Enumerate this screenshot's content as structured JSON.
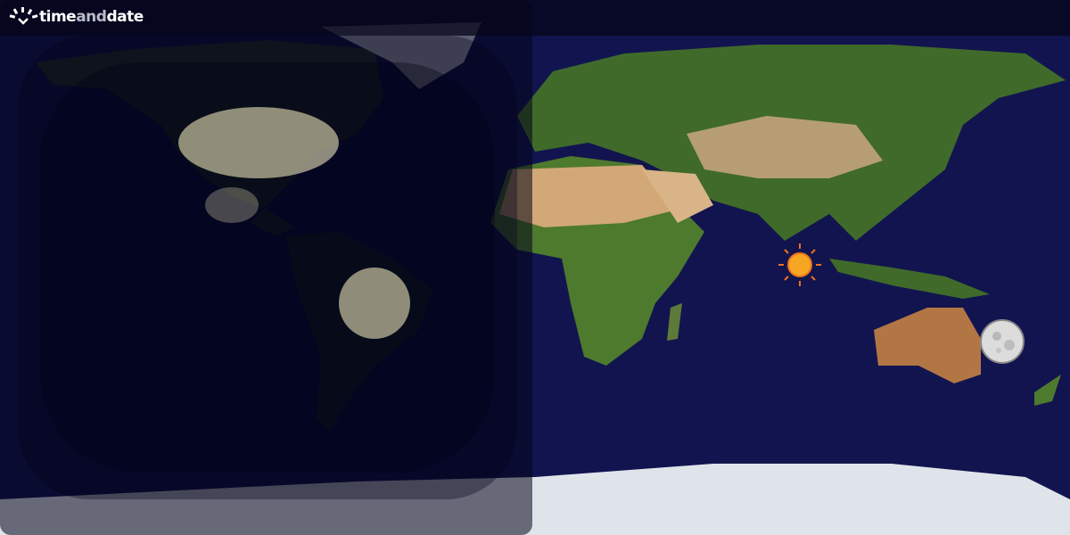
{
  "brand": {
    "part1": "time",
    "part2": "and",
    "part3": "date"
  },
  "map": {
    "type": "day-night world map",
    "markers": [
      {
        "name": "sun",
        "icon": "sun-icon"
      },
      {
        "name": "moon",
        "icon": "moon-icon",
        "phase": "full"
      }
    ],
    "colors": {
      "ocean": "#12144f",
      "night": "#03041a",
      "land_green": "#3f6a2a",
      "land_desert": "#c9a070",
      "ice": "#dfe4ea",
      "sun": "#f6a623"
    }
  }
}
